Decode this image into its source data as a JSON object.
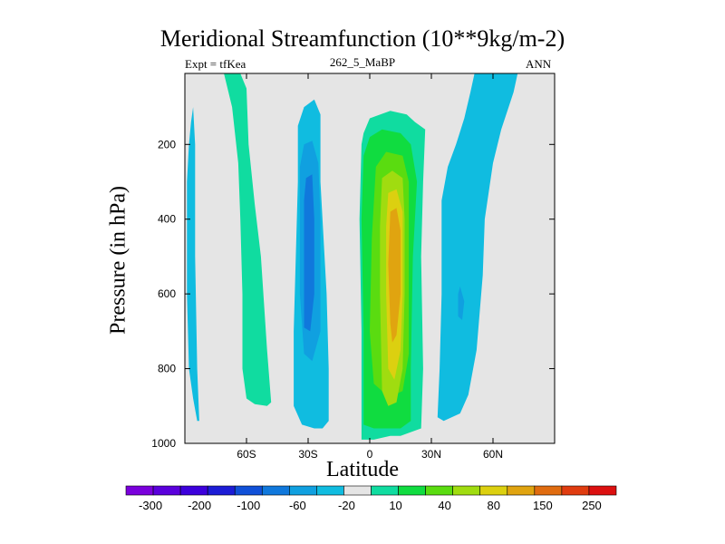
{
  "chart_data": {
    "type": "filled-contour",
    "title": "Meridional Streamfunction (10**9kg/m-2)",
    "subtitle_left": "Expt = tfKea",
    "subtitle_center": "262_5_MaBP",
    "subtitle_right": "ANN",
    "xlabel": "Latitude",
    "ylabel": "Pressure (in hPa)",
    "x_ticks": [
      {
        "value": -60,
        "label": "60S"
      },
      {
        "value": -30,
        "label": "30S"
      },
      {
        "value": 0,
        "label": "0"
      },
      {
        "value": 30,
        "label": "30N"
      },
      {
        "value": 60,
        "label": "60N"
      }
    ],
    "y_ticks": [
      {
        "value": 200,
        "label": "200"
      },
      {
        "value": 400,
        "label": "400"
      },
      {
        "value": 600,
        "label": "600"
      },
      {
        "value": 800,
        "label": "800"
      },
      {
        "value": 1000,
        "label": "1000"
      }
    ],
    "xlim": [
      -90,
      90
    ],
    "ylim": [
      1000,
      10
    ],
    "y_inverted": true,
    "background_color": "#e5e5e5",
    "colorbar": {
      "position": "bottom",
      "colors": [
        "#7a00dc",
        "#5a00dc",
        "#3c00dc",
        "#1c1cd6",
        "#1050d8",
        "#1078dc",
        "#10a0e0",
        "#10bce0",
        "#e5e5e5",
        "#10dca0",
        "#10dc40",
        "#5adc10",
        "#a0dc10",
        "#dcd010",
        "#e0a410",
        "#e06c10",
        "#e03c10",
        "#dc1010"
      ],
      "labels": [
        {
          "after_bin": 1,
          "text": "-300"
        },
        {
          "after_bin": 3,
          "text": "-200"
        },
        {
          "after_bin": 5,
          "text": "-100"
        },
        {
          "after_bin": 7,
          "text": "-60"
        },
        {
          "after_bin": 9,
          "text": "-20"
        },
        {
          "after_bin": 11,
          "text": "10"
        },
        {
          "after_bin": 13,
          "text": "40"
        },
        {
          "after_bin": 15,
          "text": "80"
        },
        {
          "after_bin": 17,
          "text": "150"
        },
        {
          "after_bin": 19,
          "text": "250"
        }
      ]
    },
    "regions": [
      {
        "name": "far-south-cell",
        "color": "#10bce0",
        "sign": "negative",
        "points": [
          [
            -86,
            100
          ],
          [
            -85,
            200
          ],
          [
            -85,
            500
          ],
          [
            -84,
            800
          ],
          [
            -83,
            940
          ],
          [
            -84,
            940
          ],
          [
            -86,
            880
          ],
          [
            -88,
            800
          ],
          [
            -89,
            600
          ],
          [
            -89,
            300
          ],
          [
            -88,
            200
          ],
          [
            -87,
            140
          ]
        ]
      },
      {
        "name": "southern-positive-cell",
        "color": "#10dca0",
        "sign": "positive",
        "points": [
          [
            -71,
            10
          ],
          [
            -63,
            10
          ],
          [
            -60,
            50
          ],
          [
            -59,
            200
          ],
          [
            -56,
            360
          ],
          [
            -53,
            500
          ],
          [
            -50,
            750
          ],
          [
            -48,
            890
          ],
          [
            -50,
            900
          ],
          [
            -56,
            895
          ],
          [
            -60,
            880
          ],
          [
            -62,
            800
          ],
          [
            -62,
            600
          ],
          [
            -63,
            400
          ],
          [
            -64,
            250
          ],
          [
            -67,
            100
          ]
        ]
      },
      {
        "name": "southern-hemisphere-cell-outer",
        "color": "#10bce0",
        "sign": "negative",
        "points": [
          [
            -32,
            100
          ],
          [
            -27,
            80
          ],
          [
            -24,
            120
          ],
          [
            -24,
            300
          ],
          [
            -21,
            600
          ],
          [
            -20,
            800
          ],
          [
            -20,
            940
          ],
          [
            -23,
            960
          ],
          [
            -27,
            960
          ],
          [
            -33,
            950
          ],
          [
            -37,
            900
          ],
          [
            -37,
            700
          ],
          [
            -36,
            500
          ],
          [
            -35,
            300
          ],
          [
            -35,
            150
          ]
        ]
      },
      {
        "name": "southern-hemisphere-cell-inner",
        "color": "#10a0e0",
        "sign": "negative",
        "points": [
          [
            -32,
            200
          ],
          [
            -28,
            190
          ],
          [
            -25,
            250
          ],
          [
            -24,
            400
          ],
          [
            -24,
            600
          ],
          [
            -24,
            700
          ],
          [
            -28,
            780
          ],
          [
            -32,
            760
          ],
          [
            -34,
            600
          ],
          [
            -34,
            400
          ],
          [
            -34,
            260
          ]
        ]
      },
      {
        "name": "southern-hemisphere-cell-core",
        "color": "#1078dc",
        "sign": "negative",
        "points": [
          [
            -31,
            290
          ],
          [
            -28,
            280
          ],
          [
            -27,
            400
          ],
          [
            -27,
            600
          ],
          [
            -29,
            700
          ],
          [
            -32,
            690
          ],
          [
            -32,
            500
          ],
          [
            -32,
            350
          ]
        ]
      },
      {
        "name": "northern-hemisphere-cell-top",
        "color": "#10dca0",
        "sign": "positive",
        "points": [
          [
            -3,
            170
          ],
          [
            0,
            130
          ],
          [
            10,
            110
          ],
          [
            18,
            120
          ],
          [
            22,
            140
          ],
          [
            27,
            160
          ],
          [
            26,
            300
          ],
          [
            25,
            500
          ],
          [
            26,
            800
          ],
          [
            25,
            960
          ],
          [
            20,
            970
          ],
          [
            15,
            980
          ],
          [
            10,
            980
          ],
          [
            2,
            990
          ],
          [
            -4,
            990
          ],
          [
            -4,
            700
          ],
          [
            -5,
            400
          ],
          [
            -4,
            200
          ]
        ]
      },
      {
        "name": "northern-hemisphere-cell-1",
        "color": "#10dc40",
        "sign": "positive",
        "points": [
          [
            -3,
            230
          ],
          [
            0,
            180
          ],
          [
            6,
            160
          ],
          [
            15,
            170
          ],
          [
            20,
            200
          ],
          [
            23,
            300
          ],
          [
            21,
            500
          ],
          [
            20,
            800
          ],
          [
            20,
            940
          ],
          [
            15,
            960
          ],
          [
            8,
            960
          ],
          [
            2,
            960
          ],
          [
            -3,
            950
          ],
          [
            -3,
            700
          ],
          [
            -4,
            400
          ]
        ]
      },
      {
        "name": "northern-hemisphere-cell-2",
        "color": "#5adc10",
        "sign": "positive",
        "points": [
          [
            3,
            260
          ],
          [
            8,
            220
          ],
          [
            16,
            230
          ],
          [
            19,
            300
          ],
          [
            19,
            500
          ],
          [
            19,
            760
          ],
          [
            16,
            860
          ],
          [
            12,
            870
          ],
          [
            6,
            860
          ],
          [
            2,
            840
          ],
          [
            0,
            700
          ],
          [
            1,
            450
          ]
        ]
      },
      {
        "name": "northern-hemisphere-cell-3",
        "color": "#a0dc10",
        "sign": "positive",
        "points": [
          [
            6,
            290
          ],
          [
            11,
            270
          ],
          [
            16,
            290
          ],
          [
            17,
            400
          ],
          [
            17,
            600
          ],
          [
            16,
            800
          ],
          [
            13,
            890
          ],
          [
            9,
            900
          ],
          [
            6,
            860
          ],
          [
            5,
            600
          ],
          [
            5,
            420
          ]
        ]
      },
      {
        "name": "northern-hemisphere-cell-4",
        "color": "#dcd010",
        "sign": "positive",
        "points": [
          [
            9,
            330
          ],
          [
            13,
            320
          ],
          [
            16,
            380
          ],
          [
            16,
            600
          ],
          [
            15,
            750
          ],
          [
            12,
            830
          ],
          [
            9,
            800
          ],
          [
            8,
            600
          ],
          [
            8,
            420
          ]
        ]
      },
      {
        "name": "northern-hemisphere-cell-core",
        "color": "#e0a410",
        "sign": "positive",
        "points": [
          [
            10,
            380
          ],
          [
            13,
            370
          ],
          [
            15,
            430
          ],
          [
            15,
            600
          ],
          [
            13,
            710
          ],
          [
            11,
            730
          ],
          [
            10,
            680
          ],
          [
            9,
            520
          ]
        ]
      },
      {
        "name": "northern-negative-cell",
        "color": "#10bce0",
        "sign": "negative",
        "points": [
          [
            51,
            10
          ],
          [
            72,
            10
          ],
          [
            70,
            60
          ],
          [
            67,
            110
          ],
          [
            64,
            160
          ],
          [
            60,
            250
          ],
          [
            56,
            400
          ],
          [
            55,
            550
          ],
          [
            52,
            750
          ],
          [
            48,
            870
          ],
          [
            44,
            920
          ],
          [
            36,
            940
          ],
          [
            33,
            930
          ],
          [
            34,
            800
          ],
          [
            35,
            600
          ],
          [
            35,
            350
          ],
          [
            38,
            260
          ],
          [
            42,
            200
          ],
          [
            46,
            130
          ],
          [
            49,
            60
          ]
        ]
      },
      {
        "name": "northern-negative-cell-core",
        "color": "#10a0e0",
        "sign": "negative",
        "points": [
          [
            43,
            600
          ],
          [
            44,
            580
          ],
          [
            46,
            620
          ],
          [
            45,
            670
          ],
          [
            43,
            660
          ]
        ]
      }
    ]
  }
}
